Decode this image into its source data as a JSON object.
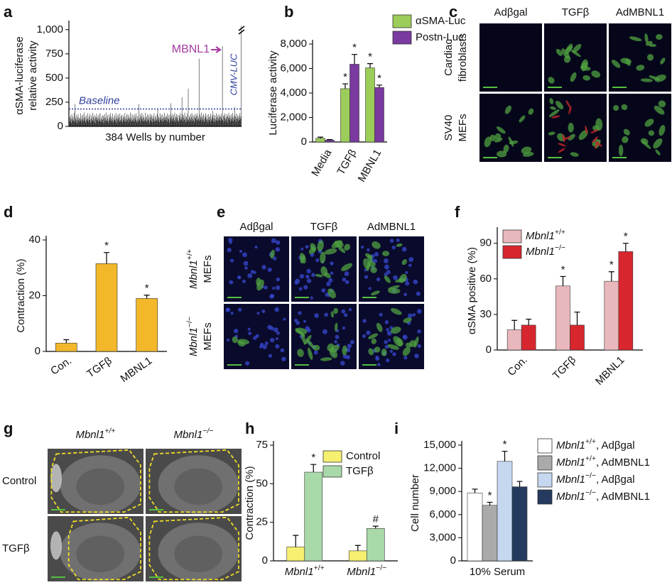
{
  "chart_data": [
    {
      "panel": "a",
      "type": "bar",
      "ylabel": [
        "αSMA-luciferase",
        "relative activity"
      ],
      "xlabel": "384 Wells by number",
      "color": "#000000",
      "ylim": [
        0,
        1050
      ],
      "yticks": [
        0,
        250,
        500,
        750,
        {
          "value": 1000,
          "label": "1,000"
        }
      ],
      "baseline": 180,
      "baseline_label": "Baseline",
      "annotations": [
        "MBNL1",
        "CMV-LUC"
      ],
      "values": [
        62,
        95,
        48,
        110,
        73,
        38,
        128,
        84,
        55,
        102,
        67,
        140,
        45,
        230,
        88,
        59,
        117,
        71,
        36,
        99,
        126,
        64,
        81,
        50,
        93,
        57,
        134,
        76,
        42,
        108,
        69,
        121,
        53,
        87,
        145,
        61,
        98,
        40,
        115,
        74,
        58,
        137,
        82,
        47,
        104,
        66,
        129,
        71,
        39,
        112,
        85,
        56,
        141,
        63,
        95,
        48,
        119,
        77,
        34,
        106,
        88,
        132,
        59,
        72,
        101,
        45,
        124,
        83,
        61,
        139,
        52,
        97,
        75,
        44,
        118,
        68,
        109,
        36,
        86,
        127,
        57,
        93,
        64,
        143,
        49,
        81,
        114,
        60,
        38,
        122,
        91,
        70,
        136,
        54,
        103,
        79,
        58,
        131,
        42,
        96,
        73,
        117,
        65,
        51,
        140,
        84,
        37,
        109,
        76,
        125,
        62,
        90,
        47,
        133,
        68,
        105,
        56,
        119,
        83,
        41,
        112,
        67,
        94,
        53,
        138,
        78,
        46,
        107,
        72,
        129,
        59,
        85,
        121,
        43,
        99,
        74,
        142,
        61,
        88,
        50,
        126,
        69,
        115,
        57,
        84,
        48,
        123,
        71,
        97,
        135,
        62,
        40,
        110,
        79,
        54,
        230,
        92,
        66,
        128,
        45,
        103,
        77,
        139,
        58,
        87,
        118,
        51,
        96,
        69,
        141,
        56,
        83,
        104,
        47,
        127,
        73,
        60,
        115,
        89,
        38,
        132,
        64,
        98,
        52,
        120,
        81,
        43,
        107,
        75,
        136,
        59,
        94,
        50,
        113,
        78,
        62,
        129,
        175,
        55,
        101,
        86,
        44,
        137,
        68,
        92,
        118,
        57,
        80,
        125,
        46,
        99,
        72,
        140,
        61,
        88,
        110,
        63,
        97,
        134,
        49,
        82,
        116,
        71,
        39,
        124,
        87,
        240,
        58,
        105,
        76,
        131,
        53,
        90,
        117,
        65,
        142,
        48,
        101,
        79,
        128,
        56,
        93,
        120,
        68,
        45,
        112,
        84,
        137,
        61,
        99,
        73,
        300,
        127,
        52,
        89,
        115,
        66,
        141,
        78,
        43,
        106,
        95,
        58,
        133,
        74,
        390,
        62,
        108,
        87,
        49,
        125,
        71,
        96,
        139,
        55,
        83,
        118,
        64,
        101,
        42,
        130,
        77,
        92,
        114,
        59,
        136,
        68,
        103,
        81,
        700,
        57,
        124,
        69,
        98,
        143,
        52,
        87,
        111,
        63,
        129,
        74,
        46,
        107,
        92,
        135,
        60,
        83,
        119,
        71,
        40,
        126,
        95,
        67,
        102,
        48,
        133,
        76,
        58,
        114,
        89,
        160,
        53,
        121,
        80,
        45,
        109,
        72,
        138,
        61,
        94,
        117,
        55,
        86,
        128,
        64,
        99,
        112,
        58,
        91,
        130,
        72,
        830,
        63,
        105,
        47,
        119,
        84,
        136,
        56,
        98,
        73,
        124,
        41,
        107,
        88,
        142,
        65,
        93,
        115,
        52,
        78,
        126,
        61,
        97,
        140,
        54,
        86,
        113,
        200,
        69,
        102,
        45,
        131,
        75,
        92,
        120,
        57,
        88,
        109,
        66,
        137,
        80,
        104,
        1040
      ]
    },
    {
      "panel": "b",
      "type": "bar",
      "ylabel": "Luciferase activity",
      "categories": [
        "Media",
        "TGFβ",
        "MBNL1"
      ],
      "ylim": [
        0,
        8000
      ],
      "yticks": [
        0,
        {
          "value": 2000,
          "label": "2,000"
        },
        {
          "value": 4000,
          "label": "4,000"
        },
        {
          "value": 6000,
          "label": "6,000"
        },
        {
          "value": 8000,
          "label": "8,000"
        }
      ],
      "series": [
        {
          "name": "αSMA-Luc",
          "color": "#9ccc5a",
          "values": [
            300,
            4350,
            6050
          ],
          "errors": [
            100,
            400,
            350
          ],
          "sig": [
            null,
            "*",
            "*"
          ]
        },
        {
          "name": "Postn-Luc",
          "color": "#7a3aa0",
          "values": [
            150,
            6350,
            4450
          ],
          "errors": [
            50,
            800,
            200
          ],
          "sig": [
            null,
            "*",
            "*"
          ]
        }
      ]
    },
    {
      "panel": "d",
      "type": "bar",
      "ylabel": "Contraction (%)",
      "categories": [
        "Con.",
        "TGFβ",
        "MBNL1"
      ],
      "ylim": [
        0,
        40
      ],
      "yticks": [
        0,
        20,
        40
      ],
      "series": [
        {
          "name": null,
          "color": "#f2b82a",
          "values": [
            3,
            31.5,
            19
          ],
          "errors": [
            1.2,
            4,
            1.2
          ],
          "sig": [
            null,
            "*",
            "*"
          ]
        }
      ]
    },
    {
      "panel": "f",
      "type": "bar",
      "ylabel": "αSMA positive (%)",
      "categories": [
        "Con.",
        "TGFβ",
        "MBNL1"
      ],
      "ylim": [
        0,
        100
      ],
      "yticks": [
        0,
        30,
        60,
        90
      ],
      "series": [
        {
          "name": "Mbnl1+/+",
          "color": "#e8b8bc",
          "values": [
            17,
            54,
            58
          ],
          "errors": [
            8,
            8,
            8
          ],
          "sig": [
            null,
            "*",
            "*"
          ]
        },
        {
          "name": "Mbnl1−/−",
          "color": "#d8262e",
          "values": [
            21,
            21,
            83
          ],
          "errors": [
            5,
            11,
            7
          ],
          "sig": [
            null,
            null,
            "*"
          ]
        }
      ]
    },
    {
      "panel": "h",
      "type": "bar",
      "ylabel": "Contraction (%)",
      "categories": [
        "Mbnl1+/+",
        "Mbnl1−/−"
      ],
      "ylim": [
        0,
        75
      ],
      "yticks": [
        0,
        25,
        50,
        75
      ],
      "series": [
        {
          "name": "Control",
          "color": "#f6ef70",
          "values": [
            9,
            6.5
          ],
          "errors": [
            7.5,
            3.5
          ],
          "sig": [
            null,
            null
          ]
        },
        {
          "name": "TGFβ",
          "color": "#a9d9a9",
          "values": [
            57.5,
            21
          ],
          "errors": [
            5,
            1.5
          ],
          "sig": [
            "*",
            "#"
          ]
        }
      ]
    },
    {
      "panel": "i",
      "type": "bar",
      "ylabel": "Cell number",
      "categories": [
        "10% Serum"
      ],
      "ylim": [
        0,
        15000
      ],
      "yticks": [
        0,
        {
          "value": 3000,
          "label": "3,000"
        },
        {
          "value": 6000,
          "label": "6,000"
        },
        {
          "value": 9000,
          "label": "9,000"
        },
        {
          "value": 12000,
          "label": "12,000"
        },
        {
          "value": 15000,
          "label": "15,000"
        }
      ],
      "series": [
        {
          "name": "Mbnl1+/+, Adβgal",
          "color": "#ffffff",
          "values": [
            8800
          ],
          "errors": [
            500
          ],
          "sig": [
            null
          ]
        },
        {
          "name": "Mbnl1+/+, AdMBNL1",
          "color": "#aaaaaa",
          "values": [
            7200
          ],
          "errors": [
            400
          ],
          "sig": [
            "*"
          ]
        },
        {
          "name": "Mbnl1−/−, Adβgal",
          "color": "#c6d7f0",
          "values": [
            12900
          ],
          "errors": [
            1300
          ],
          "sig": [
            "*"
          ]
        },
        {
          "name": "Mbnl1−/−, AdMBNL1",
          "color": "#243a5e",
          "values": [
            9600
          ],
          "errors": [
            700
          ],
          "sig": [
            null
          ]
        }
      ]
    }
  ],
  "image_panels": [
    {
      "panel": "c",
      "columns": [
        "Adβgal",
        "TGFβ",
        "AdMBNL1"
      ],
      "rows": [
        [
          "Cardiac",
          "fibroblasts"
        ],
        [
          "SV40",
          "MEFs"
        ]
      ]
    },
    {
      "panel": "e",
      "columns": [
        "Adβgal",
        "TGFβ",
        "AdMBNL1"
      ],
      "rows": [
        [
          "Mbnl1+/+",
          "MEFs"
        ],
        [
          "Mbnl1−/−",
          "MEFs"
        ]
      ]
    },
    {
      "panel": "g",
      "columns": [
        "Mbnl1+/+",
        "Mbnl1−/−"
      ],
      "rows": [
        [
          "Control"
        ],
        [
          "TGFβ"
        ]
      ]
    }
  ]
}
